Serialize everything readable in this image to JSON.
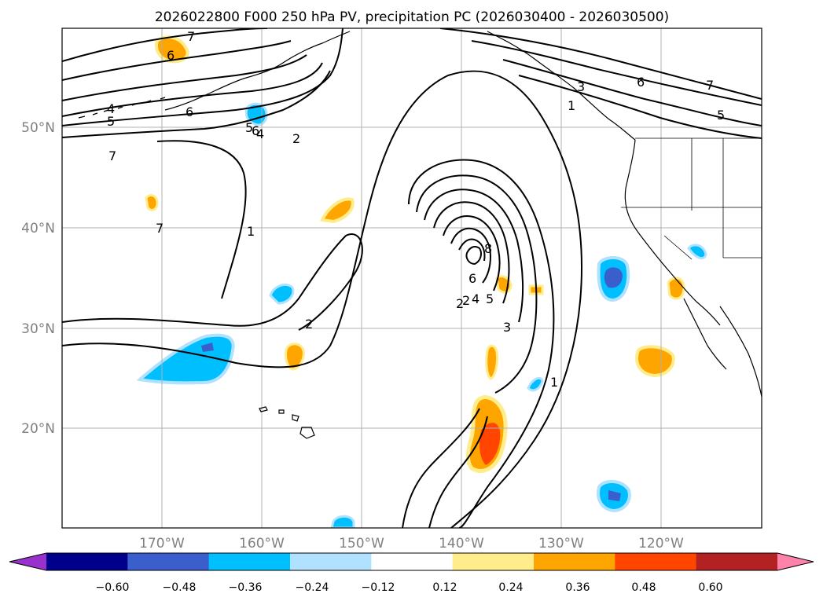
{
  "title": "2026022800 F000 250 hPa PV, precipitation PC (2026030400 - 2026030500)",
  "lat_labels": [
    "50°N",
    "40°N",
    "30°N",
    "20°N"
  ],
  "lon_labels": [
    "170°W",
    "160°W",
    "150°W",
    "140°W",
    "130°W",
    "120°W"
  ],
  "contour_labels": [
    "7",
    "6",
    "6",
    "4",
    "5",
    "6",
    "5",
    "4",
    "2",
    "7",
    "7",
    "1",
    "2",
    "2",
    "8",
    "6",
    "5",
    "4",
    "2",
    "3",
    "1",
    "3",
    "6",
    "7",
    "5",
    "1"
  ],
  "colorbar": {
    "ticks": [
      "−0.60",
      "−0.48",
      "−0.36",
      "−0.24",
      "−0.12",
      "0.12",
      "0.24",
      "0.36",
      "0.48",
      "0.60"
    ],
    "colors": [
      "#9932cc",
      "#00008b",
      "#3a5fcd",
      "#00bfff",
      "#b0e2ff",
      "#ffffff",
      "#ffec8b",
      "#ffa500",
      "#ff4500",
      "#b22222",
      "#ff82ab"
    ]
  },
  "chart_data": {
    "type": "map",
    "title": "2026022800 F000 250 hPa PV, precipitation PC (2026030400 - 2026030500)",
    "projection": "lat-lon",
    "lon_range": [
      -180,
      -110
    ],
    "lat_range": [
      10,
      60
    ],
    "gridlines": true,
    "variables": [
      "250 hPa potential vorticity (PVU, black contours, interval 1)",
      "precipitation PC (shaded)"
    ],
    "pv_contour_levels": [
      1,
      2,
      3,
      4,
      5,
      6,
      7,
      8
    ],
    "pv_max_center": {
      "lon": -139,
      "lat": 38,
      "value": 8
    },
    "colorbar_levels": [
      -0.6,
      -0.48,
      -0.36,
      -0.24,
      -0.12,
      0.12,
      0.24,
      0.36,
      0.48,
      0.6
    ]
  }
}
